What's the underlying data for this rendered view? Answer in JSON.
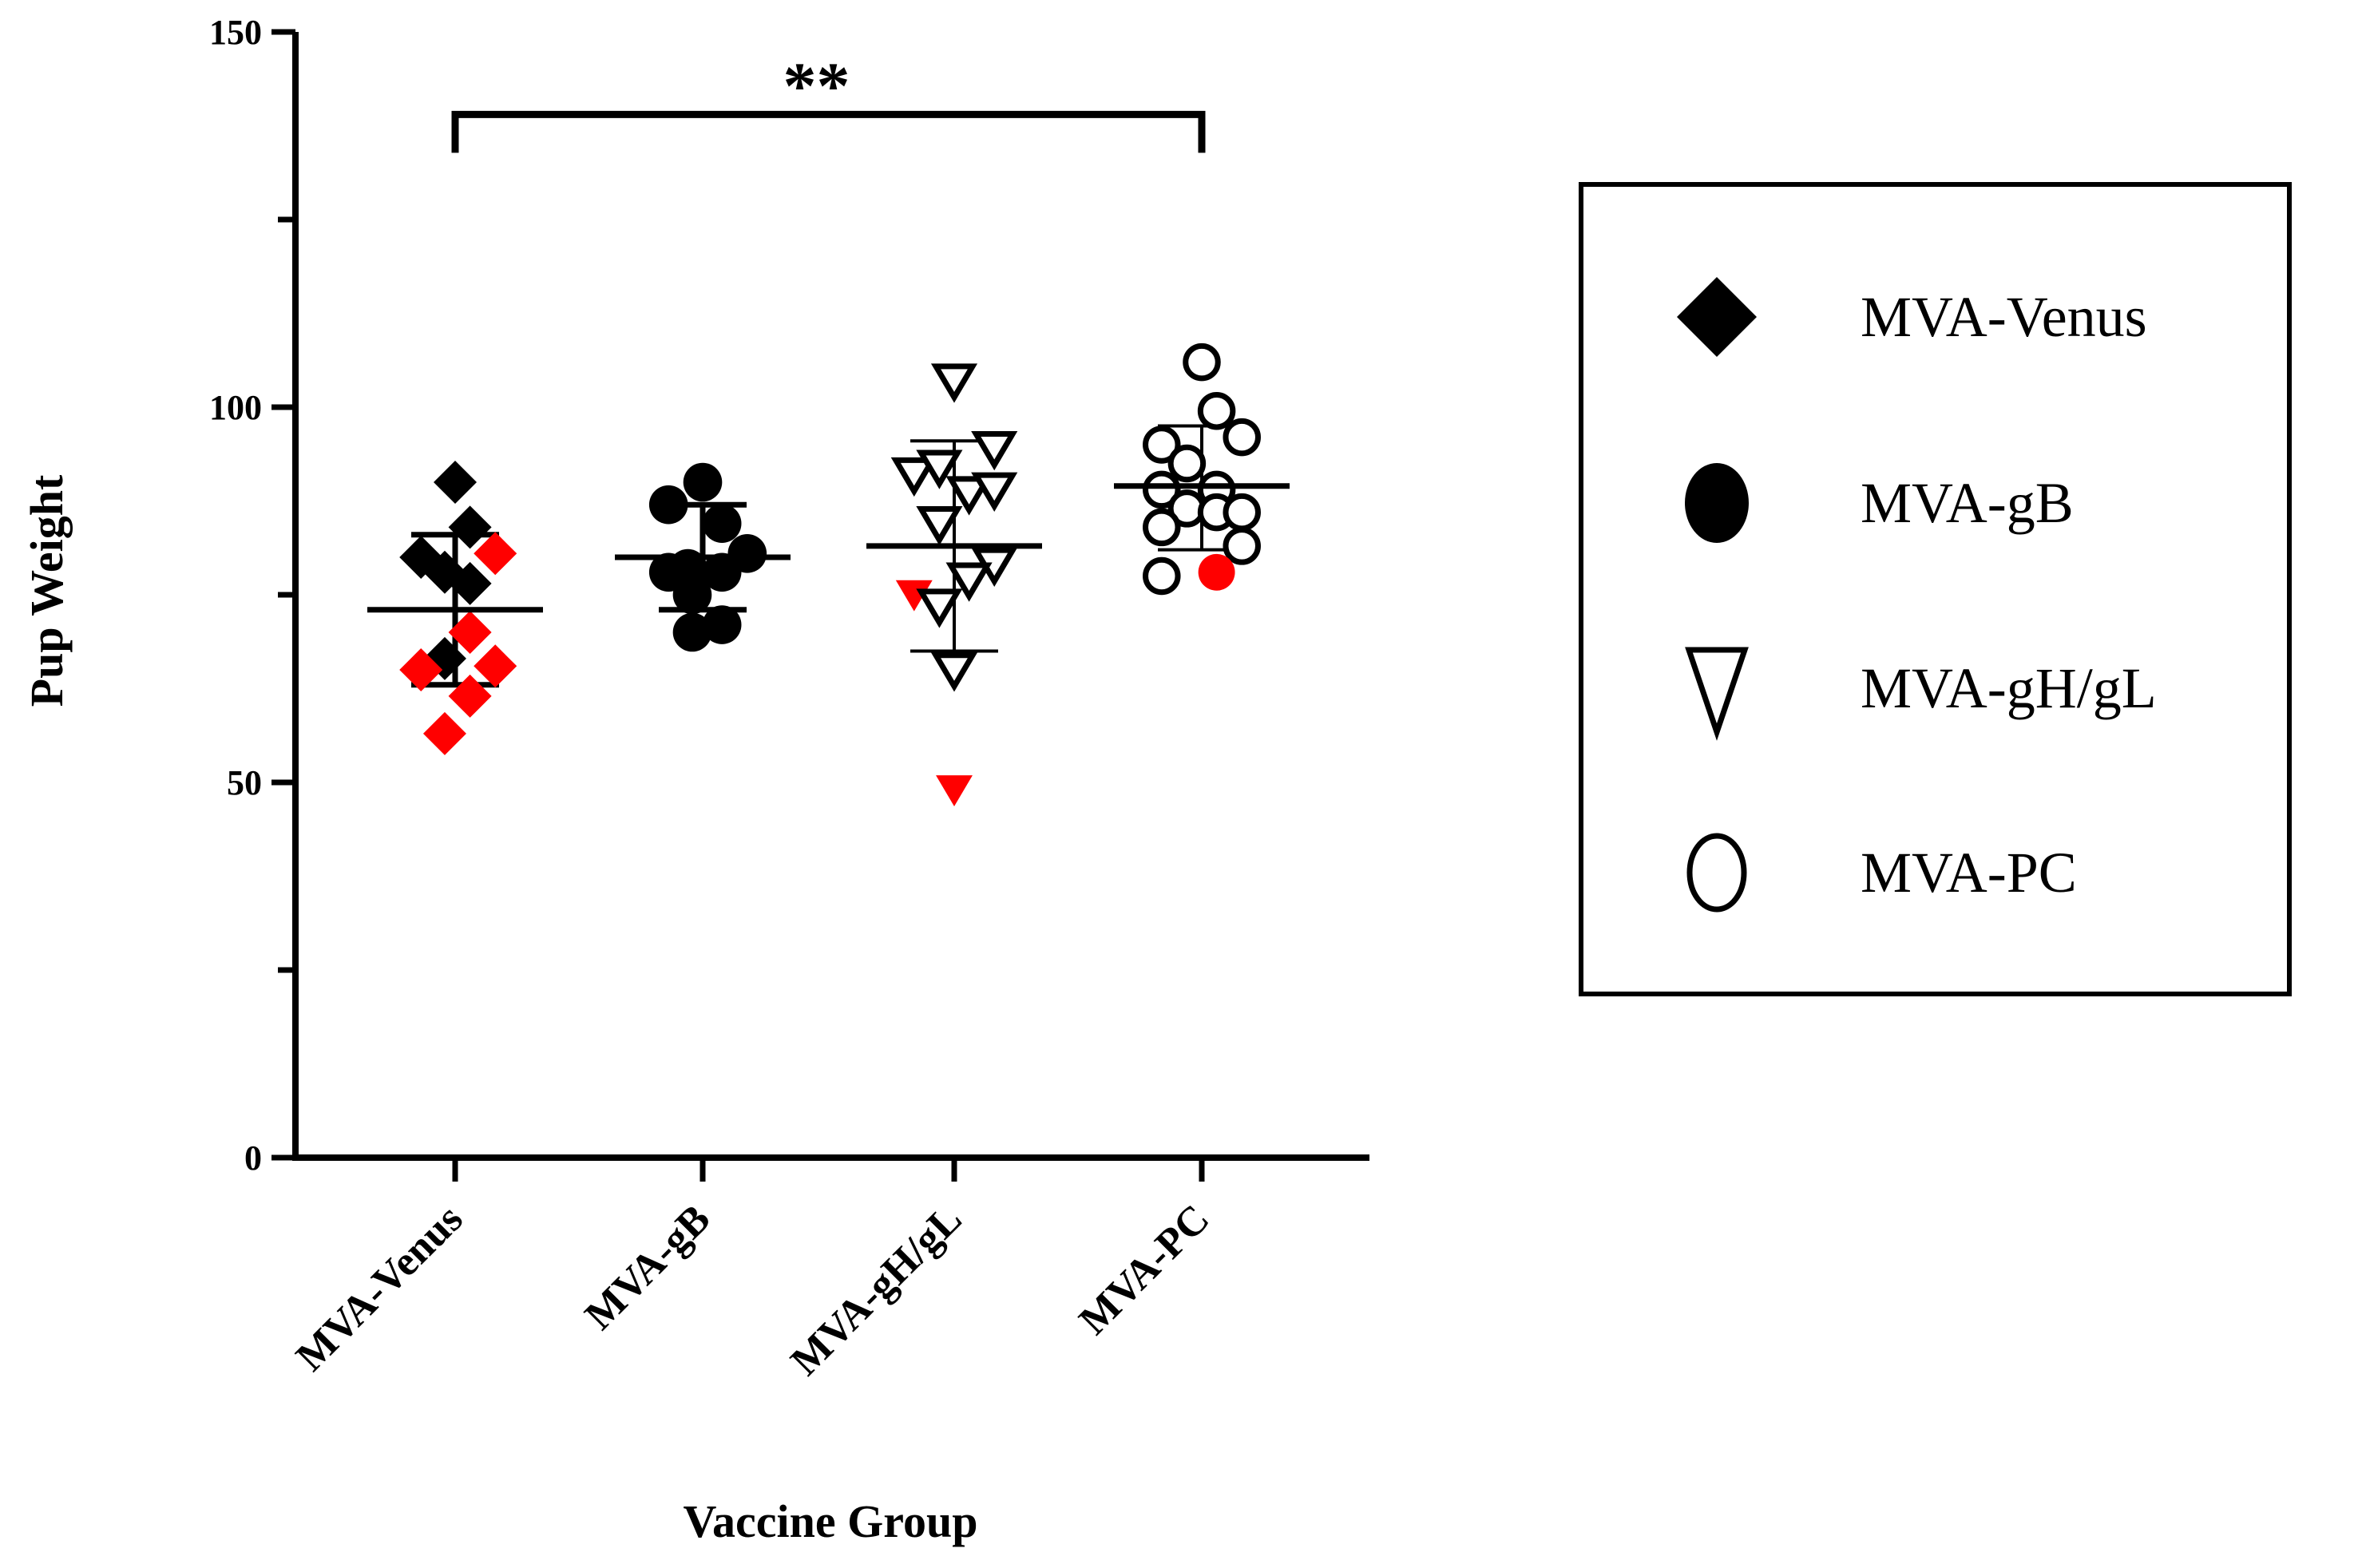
{
  "chart_data": {
    "type": "scatter",
    "xlabel": "Vaccine Group",
    "ylabel": "Pup Weight",
    "ylim": [
      0,
      150
    ],
    "yticks": [
      0,
      50,
      100,
      150
    ],
    "categories": [
      "MVA-Venus",
      "MVA-gB",
      "MVA-gH/gL",
      "MVA-PC"
    ],
    "colors": {
      "axis": "#000000",
      "highlight": "#ff0000",
      "normal": "#000000"
    },
    "significance": {
      "from": "MVA-Venus",
      "to": "MVA-PC",
      "label": "**",
      "y": 139
    },
    "series": [
      {
        "name": "MVA-Venus",
        "marker": "diamond-filled",
        "mean": 73,
        "sd_low": 63,
        "sd_high": 83,
        "points": [
          {
            "x_offset": 0.0,
            "y": 90,
            "highlight": false
          },
          {
            "x_offset": 0.1,
            "y": 84,
            "highlight": false
          },
          {
            "x_offset": -0.23,
            "y": 80,
            "highlight": false
          },
          {
            "x_offset": 0.27,
            "y": 80.5,
            "highlight": true
          },
          {
            "x_offset": -0.07,
            "y": 78,
            "highlight": false
          },
          {
            "x_offset": 0.1,
            "y": 76.5,
            "highlight": false
          },
          {
            "x_offset": 0.1,
            "y": 70,
            "highlight": true
          },
          {
            "x_offset": -0.07,
            "y": 66.5,
            "highlight": false
          },
          {
            "x_offset": -0.23,
            "y": 65,
            "highlight": true
          },
          {
            "x_offset": 0.27,
            "y": 65.5,
            "highlight": true
          },
          {
            "x_offset": 0.1,
            "y": 61.5,
            "highlight": true
          },
          {
            "x_offset": -0.07,
            "y": 56.5,
            "highlight": true
          }
        ]
      },
      {
        "name": "MVA-gB",
        "marker": "circle-filled",
        "mean": 80,
        "sd_low": 73,
        "sd_high": 87,
        "points": [
          {
            "x_offset": 0.0,
            "y": 90,
            "highlight": false
          },
          {
            "x_offset": -0.23,
            "y": 87,
            "highlight": false
          },
          {
            "x_offset": 0.13,
            "y": 84.5,
            "highlight": false
          },
          {
            "x_offset": 0.3,
            "y": 80.5,
            "highlight": false
          },
          {
            "x_offset": -0.1,
            "y": 78.5,
            "highlight": false
          },
          {
            "x_offset": 0.13,
            "y": 78,
            "highlight": false
          },
          {
            "x_offset": -0.23,
            "y": 78,
            "highlight": false
          },
          {
            "x_offset": -0.07,
            "y": 75,
            "highlight": false
          },
          {
            "x_offset": 0.13,
            "y": 71,
            "highlight": false
          },
          {
            "x_offset": -0.07,
            "y": 70,
            "highlight": false
          }
        ]
      },
      {
        "name": "MVA-gH/gL",
        "marker": "triangle-down-open",
        "mean": 81.5,
        "sd_low": 67.5,
        "sd_high": 95.5,
        "points": [
          {
            "x_offset": 0.0,
            "y": 103.5,
            "highlight": false
          },
          {
            "x_offset": 0.27,
            "y": 94.5,
            "highlight": false
          },
          {
            "x_offset": -0.27,
            "y": 91,
            "highlight": false
          },
          {
            "x_offset": -0.1,
            "y": 92,
            "highlight": false
          },
          {
            "x_offset": 0.1,
            "y": 88.5,
            "highlight": false
          },
          {
            "x_offset": 0.27,
            "y": 89,
            "highlight": false
          },
          {
            "x_offset": -0.1,
            "y": 84.5,
            "highlight": false
          },
          {
            "x_offset": 0.27,
            "y": 79,
            "highlight": false
          },
          {
            "x_offset": 0.1,
            "y": 77,
            "highlight": false
          },
          {
            "x_offset": -0.27,
            "y": 75,
            "highlight": true
          },
          {
            "x_offset": -0.1,
            "y": 73.5,
            "highlight": false
          },
          {
            "x_offset": 0.0,
            "y": 65,
            "highlight": false
          },
          {
            "x_offset": 0.0,
            "y": 49,
            "highlight": true
          }
        ]
      },
      {
        "name": "MVA-PC",
        "marker": "circle-open",
        "mean": 89.5,
        "sd_low": 81,
        "sd_high": 97.5,
        "points": [
          {
            "x_offset": 0.0,
            "y": 106,
            "highlight": false
          },
          {
            "x_offset": 0.1,
            "y": 99.5,
            "highlight": false
          },
          {
            "x_offset": 0.27,
            "y": 96,
            "highlight": false
          },
          {
            "x_offset": -0.27,
            "y": 95,
            "highlight": false
          },
          {
            "x_offset": -0.1,
            "y": 92.5,
            "highlight": false
          },
          {
            "x_offset": -0.27,
            "y": 89,
            "highlight": false
          },
          {
            "x_offset": 0.1,
            "y": 89,
            "highlight": false
          },
          {
            "x_offset": -0.1,
            "y": 86.5,
            "highlight": false
          },
          {
            "x_offset": 0.1,
            "y": 86,
            "highlight": false
          },
          {
            "x_offset": 0.27,
            "y": 86,
            "highlight": false
          },
          {
            "x_offset": -0.27,
            "y": 84,
            "highlight": false
          },
          {
            "x_offset": 0.27,
            "y": 81.5,
            "highlight": false
          },
          {
            "x_offset": -0.27,
            "y": 77.5,
            "highlight": false
          },
          {
            "x_offset": 0.1,
            "y": 78,
            "highlight": true
          }
        ]
      }
    ],
    "legend": {
      "position": "right",
      "entries": [
        {
          "label": "MVA-Venus",
          "marker": "diamond-filled"
        },
        {
          "label": "MVA-gB",
          "marker": "circle-filled"
        },
        {
          "label": "MVA-gH/gL",
          "marker": "triangle-down-open"
        },
        {
          "label": "MVA-PC",
          "marker": "circle-open"
        }
      ]
    }
  }
}
